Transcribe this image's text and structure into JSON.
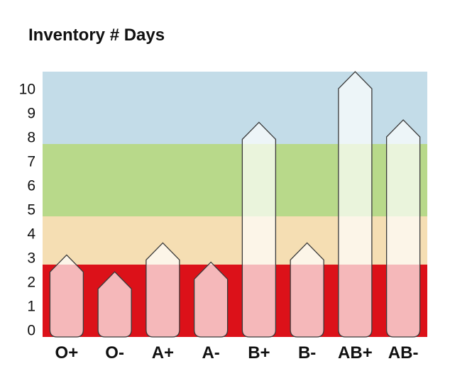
{
  "title": "Inventory # Days",
  "chart_data": {
    "type": "bar",
    "title": "Inventory # Days",
    "xlabel": "",
    "ylabel": "",
    "categories": [
      "O+",
      "O-",
      "A+",
      "A-",
      "B+",
      "B-",
      "AB+",
      "AB-"
    ],
    "values": [
      3.4,
      2.7,
      3.9,
      3.1,
      8.9,
      3.9,
      11.0,
      9.0
    ],
    "ylim": [
      0,
      11
    ],
    "yticks": [
      0,
      1,
      2,
      3,
      4,
      5,
      6,
      7,
      8,
      9,
      10
    ],
    "bands": [
      {
        "from": 0,
        "to": 3,
        "color": "#dc1119"
      },
      {
        "from": 3,
        "to": 5,
        "color": "#f5deb3"
      },
      {
        "from": 5,
        "to": 8,
        "color": "#b8d98a"
      },
      {
        "from": 8,
        "to": 11,
        "color": "#c3dce8"
      }
    ],
    "bar_style": "translucent white arrow shapes",
    "grid": false,
    "legend": "none"
  }
}
